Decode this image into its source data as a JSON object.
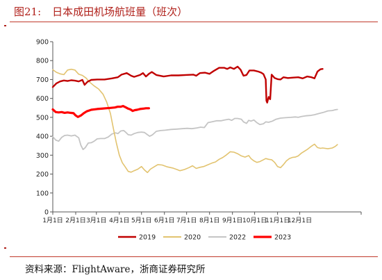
{
  "figure": {
    "number": "图21:",
    "title": "日本成田机场航班量（班次）"
  },
  "source": "资料来源：FlightAware，浙商证券研究所",
  "chart_data": {
    "type": "line",
    "x_ticks": [
      "1月1日",
      "2月1日",
      "3月1日",
      "4月1日",
      "5月1日",
      "6月1日",
      "7月1日",
      "8月1日",
      "9月1日",
      "10月1日",
      "11月1日",
      "12月1日"
    ],
    "x_domain_days": [
      0,
      365
    ],
    "y_ticks": [
      0,
      100,
      200,
      300,
      400,
      500,
      600,
      700,
      800,
      900
    ],
    "ylim": [
      0,
      900
    ],
    "legend_position": "bottom",
    "series": [
      {
        "name": "2019",
        "color": "#c00000",
        "stroke_width": 2.4,
        "points": [
          [
            0,
            660
          ],
          [
            5,
            680
          ],
          [
            10,
            690
          ],
          [
            15,
            695
          ],
          [
            20,
            692
          ],
          [
            25,
            696
          ],
          [
            30,
            694
          ],
          [
            35,
            690
          ],
          [
            40,
            698
          ],
          [
            43,
            672
          ],
          [
            47,
            688
          ],
          [
            52,
            698
          ],
          [
            60,
            700
          ],
          [
            70,
            700
          ],
          [
            80,
            706
          ],
          [
            88,
            712
          ],
          [
            93,
            726
          ],
          [
            100,
            734
          ],
          [
            106,
            720
          ],
          [
            110,
            714
          ],
          [
            118,
            724
          ],
          [
            122,
            734
          ],
          [
            126,
            716
          ],
          [
            130,
            730
          ],
          [
            134,
            740
          ],
          [
            140,
            724
          ],
          [
            150,
            716
          ],
          [
            160,
            722
          ],
          [
            170,
            722
          ],
          [
            180,
            724
          ],
          [
            190,
            726
          ],
          [
            194,
            720
          ],
          [
            199,
            734
          ],
          [
            206,
            736
          ],
          [
            212,
            730
          ],
          [
            218,
            746
          ],
          [
            225,
            762
          ],
          [
            232,
            762
          ],
          [
            236,
            756
          ],
          [
            240,
            764
          ],
          [
            245,
            756
          ],
          [
            250,
            768
          ],
          [
            254,
            752
          ],
          [
            258,
            720
          ],
          [
            262,
            724
          ],
          [
            266,
            748
          ],
          [
            272,
            748
          ],
          [
            278,
            742
          ],
          [
            282,
            736
          ],
          [
            285,
            728
          ],
          [
            288,
            700
          ],
          [
            289,
            588
          ],
          [
            290,
            578
          ],
          [
            292,
            608
          ],
          [
            294,
            596
          ],
          [
            296,
            726
          ],
          [
            300,
            708
          ],
          [
            304,
            702
          ],
          [
            308,
            700
          ],
          [
            312,
            712
          ],
          [
            318,
            708
          ],
          [
            325,
            710
          ],
          [
            332,
            712
          ],
          [
            338,
            706
          ],
          [
            344,
            716
          ],
          [
            350,
            712
          ],
          [
            354,
            706
          ],
          [
            358,
            742
          ],
          [
            362,
            754
          ],
          [
            365,
            756
          ]
        ]
      },
      {
        "name": "2020",
        "color": "#e2c36f",
        "stroke_width": 1.6,
        "points": [
          [
            0,
            752
          ],
          [
            5,
            738
          ],
          [
            10,
            730
          ],
          [
            15,
            726
          ],
          [
            20,
            750
          ],
          [
            25,
            754
          ],
          [
            30,
            750
          ],
          [
            35,
            728
          ],
          [
            40,
            722
          ],
          [
            45,
            708
          ],
          [
            50,
            686
          ],
          [
            56,
            666
          ],
          [
            62,
            650
          ],
          [
            68,
            622
          ],
          [
            73,
            580
          ],
          [
            78,
            520
          ],
          [
            82,
            440
          ],
          [
            86,
            365
          ],
          [
            90,
            300
          ],
          [
            94,
            260
          ],
          [
            98,
            238
          ],
          [
            102,
            214
          ],
          [
            106,
            210
          ],
          [
            110,
            218
          ],
          [
            115,
            226
          ],
          [
            120,
            240
          ],
          [
            124,
            222
          ],
          [
            128,
            208
          ],
          [
            132,
            226
          ],
          [
            137,
            238
          ],
          [
            142,
            250
          ],
          [
            148,
            248
          ],
          [
            155,
            238
          ],
          [
            162,
            232
          ],
          [
            168,
            224
          ],
          [
            172,
            218
          ],
          [
            178,
            224
          ],
          [
            184,
            234
          ],
          [
            189,
            244
          ],
          [
            194,
            230
          ],
          [
            199,
            236
          ],
          [
            204,
            240
          ],
          [
            209,
            248
          ],
          [
            215,
            258
          ],
          [
            220,
            264
          ],
          [
            225,
            278
          ],
          [
            230,
            288
          ],
          [
            235,
            302
          ],
          [
            240,
            318
          ],
          [
            245,
            316
          ],
          [
            250,
            308
          ],
          [
            255,
            296
          ],
          [
            260,
            290
          ],
          [
            265,
            298
          ],
          [
            268,
            282
          ],
          [
            272,
            270
          ],
          [
            276,
            262
          ],
          [
            280,
            266
          ],
          [
            284,
            274
          ],
          [
            288,
            282
          ],
          [
            292,
            278
          ],
          [
            296,
            276
          ],
          [
            300,
            262
          ],
          [
            304,
            240
          ],
          [
            308,
            234
          ],
          [
            312,
            250
          ],
          [
            316,
            270
          ],
          [
            320,
            282
          ],
          [
            324,
            288
          ],
          [
            328,
            290
          ],
          [
            332,
            296
          ],
          [
            336,
            310
          ],
          [
            340,
            320
          ],
          [
            344,
            330
          ],
          [
            350,
            348
          ],
          [
            354,
            358
          ],
          [
            358,
            340
          ],
          [
            362,
            336
          ],
          [
            365,
            338
          ],
          [
            372,
            334
          ],
          [
            378,
            338
          ],
          [
            382,
            346
          ],
          [
            385,
            356
          ]
        ]
      },
      {
        "name": "2022",
        "color": "#c4c4c4",
        "stroke_width": 1.8,
        "points": [
          [
            0,
            398
          ],
          [
            4,
            380
          ],
          [
            8,
            374
          ],
          [
            12,
            394
          ],
          [
            16,
            404
          ],
          [
            20,
            406
          ],
          [
            25,
            402
          ],
          [
            30,
            406
          ],
          [
            35,
            392
          ],
          [
            38,
            352
          ],
          [
            41,
            330
          ],
          [
            44,
            340
          ],
          [
            48,
            364
          ],
          [
            52,
            366
          ],
          [
            56,
            374
          ],
          [
            60,
            386
          ],
          [
            65,
            388
          ],
          [
            70,
            388
          ],
          [
            75,
            396
          ],
          [
            80,
            412
          ],
          [
            85,
            418
          ],
          [
            88,
            414
          ],
          [
            92,
            428
          ],
          [
            96,
            430
          ],
          [
            99,
            420
          ],
          [
            102,
            408
          ],
          [
            106,
            406
          ],
          [
            110,
            414
          ],
          [
            115,
            420
          ],
          [
            120,
            422
          ],
          [
            124,
            420
          ],
          [
            128,
            408
          ],
          [
            131,
            400
          ],
          [
            135,
            408
          ],
          [
            140,
            426
          ],
          [
            146,
            430
          ],
          [
            152,
            432
          ],
          [
            160,
            436
          ],
          [
            168,
            438
          ],
          [
            175,
            440
          ],
          [
            182,
            442
          ],
          [
            188,
            440
          ],
          [
            195,
            444
          ],
          [
            200,
            448
          ],
          [
            205,
            446
          ],
          [
            210,
            472
          ],
          [
            215,
            476
          ],
          [
            222,
            482
          ],
          [
            228,
            482
          ],
          [
            232,
            486
          ],
          [
            238,
            490
          ],
          [
            242,
            484
          ],
          [
            246,
            494
          ],
          [
            250,
            494
          ],
          [
            255,
            490
          ],
          [
            258,
            476
          ],
          [
            262,
            468
          ],
          [
            265,
            484
          ],
          [
            268,
            480
          ],
          [
            272,
            486
          ],
          [
            276,
            472
          ],
          [
            280,
            462
          ],
          [
            285,
            466
          ],
          [
            288,
            476
          ],
          [
            292,
            474
          ],
          [
            297,
            480
          ],
          [
            302,
            490
          ],
          [
            308,
            496
          ],
          [
            315,
            498
          ],
          [
            322,
            500
          ],
          [
            328,
            502
          ],
          [
            332,
            500
          ],
          [
            336,
            504
          ],
          [
            342,
            508
          ],
          [
            348,
            510
          ],
          [
            354,
            514
          ],
          [
            360,
            520
          ],
          [
            366,
            526
          ],
          [
            372,
            534
          ],
          [
            378,
            536
          ],
          [
            382,
            540
          ],
          [
            385,
            542
          ]
        ]
      },
      {
        "name": "2023",
        "color": "#ff0000",
        "stroke_width": 3.2,
        "points": [
          [
            0,
            542
          ],
          [
            4,
            528
          ],
          [
            8,
            526
          ],
          [
            12,
            528
          ],
          [
            16,
            524
          ],
          [
            20,
            526
          ],
          [
            24,
            524
          ],
          [
            28,
            522
          ],
          [
            31,
            510
          ],
          [
            34,
            502
          ],
          [
            38,
            510
          ],
          [
            42,
            522
          ],
          [
            46,
            532
          ],
          [
            52,
            540
          ],
          [
            60,
            544
          ],
          [
            66,
            546
          ],
          [
            72,
            548
          ],
          [
            78,
            550
          ],
          [
            84,
            552
          ],
          [
            88,
            556
          ],
          [
            92,
            556
          ],
          [
            95,
            560
          ],
          [
            99,
            552
          ],
          [
            102,
            546
          ],
          [
            105,
            542
          ],
          [
            108,
            534
          ],
          [
            111,
            538
          ],
          [
            114,
            540
          ],
          [
            118,
            544
          ],
          [
            122,
            546
          ],
          [
            126,
            548
          ],
          [
            130,
            548
          ]
        ]
      }
    ]
  }
}
